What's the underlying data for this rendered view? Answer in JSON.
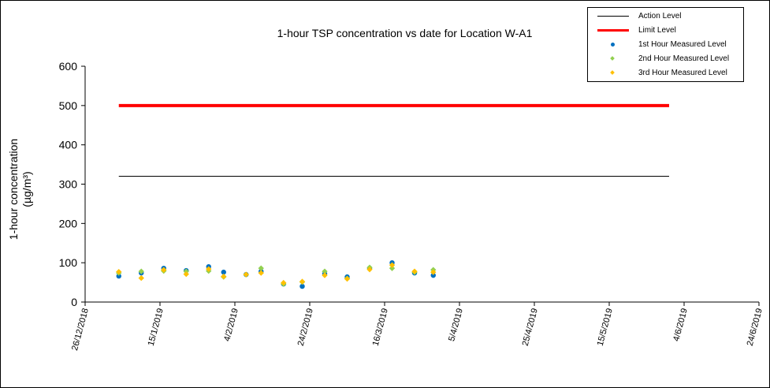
{
  "chart_data": {
    "type": "scatter",
    "title": "1-hour TSP concentration vs date for Location W-A1",
    "ylabel_line1": "1-hour concentration",
    "ylabel_line2": "(µg/m³)",
    "xlabel": "",
    "ylim": [
      0,
      600
    ],
    "yticks": [
      "0",
      "100",
      "200",
      "300",
      "400",
      "500",
      "600"
    ],
    "xlim": [
      "26/12/2018",
      "24/6/2019"
    ],
    "xticks": [
      "26/12/2018",
      "15/1/2019",
      "4/2/2019",
      "24/2/2019",
      "16/3/2019",
      "5/4/2019",
      "25/4/2019",
      "15/5/2019",
      "4/6/2019",
      "24/6/2019"
    ],
    "grid": false,
    "legend_position": "top-right",
    "reference_lines": [
      {
        "name": "Action Level",
        "value": 320,
        "from": "4/1/2019",
        "to": "31/5/2019",
        "color": "#000000"
      },
      {
        "name": "Limit Level",
        "value": 500,
        "from": "4/1/2019",
        "to": "31/5/2019",
        "color": "#ff0000"
      }
    ],
    "dates": [
      "4/1/2019",
      "10/1/2019",
      "16/1/2019",
      "22/1/2019",
      "28/1/2019",
      "1/2/2019",
      "7/2/2019",
      "11/2/2019",
      "17/2/2019",
      "22/2/2019",
      "28/2/2019",
      "6/3/2019",
      "12/3/2019",
      "18/3/2019",
      "24/3/2019",
      "29/3/2019"
    ],
    "series": [
      {
        "name": "1st Hour Measured Level",
        "color": "#0070c0",
        "marker": "circle",
        "values": [
          66,
          74,
          86,
          80,
          90,
          76,
          70,
          78,
          46,
          40,
          72,
          64,
          86,
          100,
          74,
          68
        ]
      },
      {
        "name": "2nd Hour Measured Level",
        "color": "#92d050",
        "marker": "diamond",
        "values": [
          74,
          78,
          79,
          78,
          79,
          64,
          70,
          86,
          46,
          51,
          78,
          60,
          88,
          86,
          76,
          82
        ]
      },
      {
        "name": "3rd Hour Measured Level",
        "color": "#ffc000",
        "marker": "diamond",
        "values": [
          77,
          61,
          82,
          71,
          84,
          65,
          70,
          74,
          49,
          52,
          68,
          59,
          83,
          94,
          78,
          76
        ]
      }
    ]
  }
}
